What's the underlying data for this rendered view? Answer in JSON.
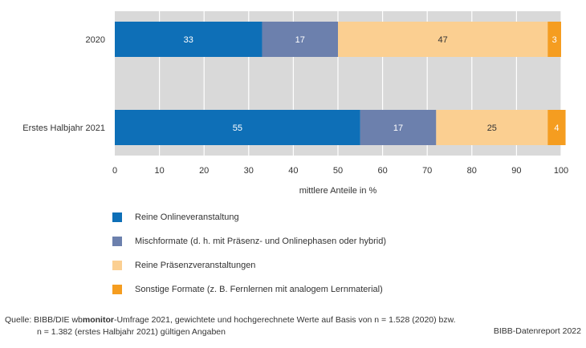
{
  "chart_data": {
    "type": "bar",
    "orientation": "horizontal",
    "stacked": true,
    "categories": [
      "2020",
      "Erstes Halbjahr 2021"
    ],
    "series": [
      {
        "name": "Reine Onlineveranstaltung",
        "values": [
          33,
          55
        ],
        "color": "#0e6fb7"
      },
      {
        "name": "Mischformate (d. h. mit Präsenz- und Onlinephasen oder hybrid)",
        "values": [
          17,
          17
        ],
        "color": "#6c80ad"
      },
      {
        "name": "Reine Präsenzveranstaltungen",
        "values": [
          47,
          25
        ],
        "color": "#fbcf91"
      },
      {
        "name": "Sonstige Formate (z. B. Fernlernen mit analogem Lernmaterial)",
        "values": [
          3,
          4
        ],
        "color": "#f59d20"
      }
    ],
    "xlabel": "mittlere Anteile in %",
    "xlim": [
      0,
      100
    ],
    "xticks": [
      0,
      10,
      20,
      30,
      40,
      50,
      60,
      70,
      80,
      90,
      100
    ],
    "grid": true,
    "legend_position": "bottom-left"
  },
  "colors": {
    "plot_background": "#d9d9d9",
    "gridline": "#ffffff"
  },
  "source": {
    "prefix": "Quelle:  BIBB/DIE wb",
    "bold": "monitor",
    "rest": "-Umfrage 2021, gewichtete und hochgerechnete Werte auf Basis von n = 1.528 (2020) bzw.",
    "line2": "n = 1.382 (erstes Halbjahr 2021) gültigen Angaben"
  },
  "credit": "BIBB-Datenreport 2022"
}
